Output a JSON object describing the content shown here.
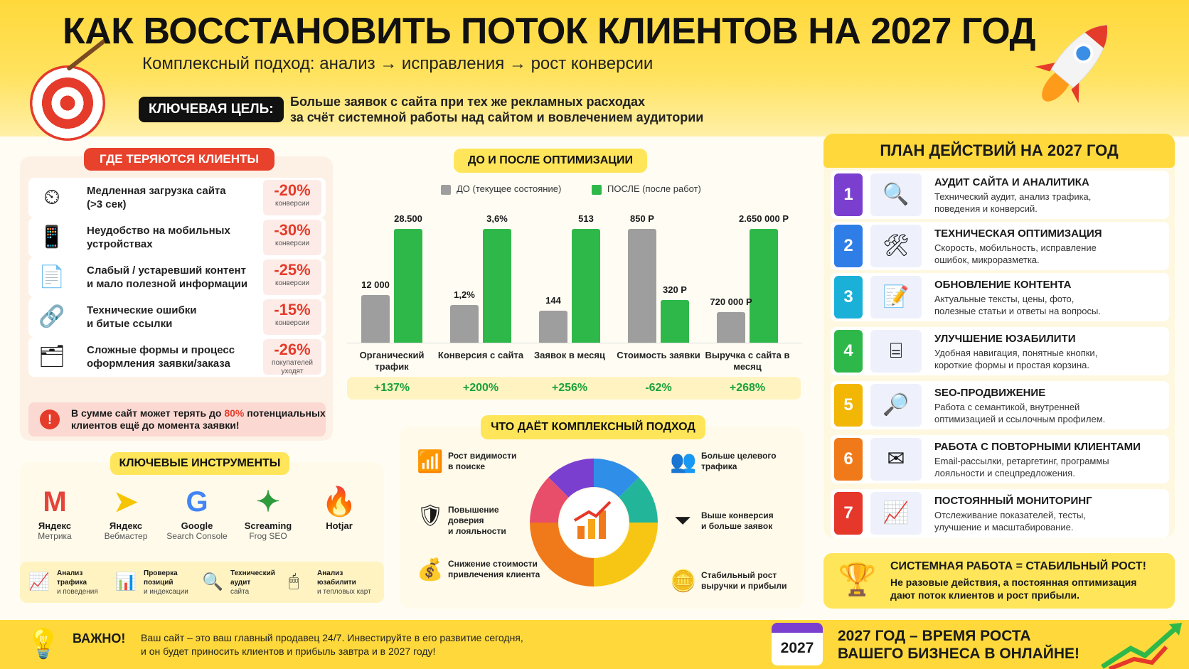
{
  "header": {
    "title": "КАК ВОССТАНОВИТЬ ПОТОК КЛИЕНТОВ НА 2027 ГОД",
    "subtitle": "Комплексный подход: анализ → исправления → рост конверсии",
    "goal_label": "КЛЮЧЕВАЯ ЦЕЛЬ:",
    "goal_line1": "Больше заявок с сайта при тех же рекламных расходах",
    "goal_line2": "за счёт системной работы над сайтом и вовлечением аудитории"
  },
  "losses": {
    "title": "ГДЕ ТЕРЯЮТСЯ КЛИЕНТЫ",
    "items": [
      {
        "icon": "speedometer-icon",
        "text1": "Медленная загрузка сайта",
        "text2": "(>3 сек)",
        "value": "-20%",
        "sub1": "конверсии",
        "sub2": ""
      },
      {
        "icon": "smartphone-icon",
        "text1": "Неудобство на мобильных",
        "text2": "устройствах",
        "value": "-30%",
        "sub1": "конверсии",
        "sub2": ""
      },
      {
        "icon": "document-icon",
        "text1": "Слабый / устаревший контент",
        "text2": "и мало полезной информации",
        "value": "-25%",
        "sub1": "конверсии",
        "sub2": ""
      },
      {
        "icon": "broken-link-icon",
        "text1": "Технические ошибки",
        "text2": "и битые ссылки",
        "value": "-15%",
        "sub1": "конверсии",
        "sub2": ""
      },
      {
        "icon": "form-icon",
        "text1": "Сложные формы и процесс",
        "text2": "оформления заявки/заказа",
        "value": "-26%",
        "sub1": "покупателей",
        "sub2": "уходят"
      }
    ],
    "alert_pre": "В сумме сайт может терять до ",
    "alert_pct": "80%",
    "alert_post": " потенциальных",
    "alert_line2": "клиентов ещё до момента заявки!"
  },
  "tools": {
    "title": "КЛЮЧЕВЫЕ ИНСТРУМЕНТЫ",
    "items": [
      {
        "name": "Яндекс",
        "sub": "Метрика",
        "color": "#e5443a"
      },
      {
        "name": "Яндекс",
        "sub": "Вебмастер",
        "color": "#f6c400"
      },
      {
        "name": "Google",
        "sub": "Search Console",
        "color": "#4285f4"
      },
      {
        "name": "Screaming",
        "sub": "Frog SEO",
        "color": "#2e9b3c"
      },
      {
        "name": "Hotjar",
        "sub": "",
        "color": "#ff3c00"
      }
    ],
    "mini": [
      {
        "t1": "Анализ",
        "t2": "трафика",
        "t3": "и поведения"
      },
      {
        "t1": "Проверка",
        "t2": "позиций",
        "t3": "и индексации"
      },
      {
        "t1": "Технический",
        "t2": "аудит",
        "t3": "сайта"
      },
      {
        "t1": "Анализ",
        "t2": "юзабилити",
        "t3": "и тепловых карт"
      }
    ]
  },
  "chart": {
    "title": "ДО И ПОСЛЕ ОПТИМИЗАЦИИ",
    "legend_before": "ДО (текущее состояние)",
    "legend_after": "ПОСЛЕ (после работ)"
  },
  "chart_data": {
    "type": "bar",
    "categories": [
      "Органический трафик",
      "Конверсия с сайта",
      "Заявок в месяц",
      "Стоимость заявки",
      "Выручка с сайта в месяц"
    ],
    "series": [
      {
        "name": "ДО (текущее состояние)",
        "values": [
          12000,
          1.2,
          144,
          850,
          720000
        ],
        "labels": [
          "12 000",
          "1,2%",
          "144",
          "850 Р",
          "720 000 Р"
        ]
      },
      {
        "name": "ПОСЛЕ (после работ)",
        "values": [
          28500,
          3.6,
          513,
          320,
          2650000
        ],
        "labels": [
          "28.500",
          "3,6%",
          "513",
          "320 Р",
          "2.650 000 Р"
        ]
      }
    ],
    "deltas": [
      "+137%",
      "+200%",
      "+256%",
      "-62%",
      "+268%"
    ],
    "colors": {
      "before": "#9e9e9e",
      "after": "#2fb84a"
    }
  },
  "benefits": {
    "title": "ЧТО ДАЁТ КОМПЛЕКСНЫЙ ПОДХОД",
    "left": [
      {
        "icon": "growth-chart-icon",
        "l1": "Рост видимости",
        "l2": "в поиске",
        "l3": ""
      },
      {
        "icon": "shield-check-icon",
        "l1": "Повышение",
        "l2": "доверия",
        "l3": "и лояльности"
      },
      {
        "icon": "coin-down-icon",
        "l1": "Снижение стоимости",
        "l2": "привлечения клиента",
        "l3": ""
      }
    ],
    "right": [
      {
        "icon": "people-icon",
        "l1": "Больше целевого",
        "l2": "трафика"
      },
      {
        "icon": "funnel-icon",
        "l1": "Выше конверсия",
        "l2": "и больше заявок"
      },
      {
        "icon": "coins-stack-icon",
        "l1": "Стабильный рост",
        "l2": "выручки и прибыли"
      }
    ]
  },
  "plan": {
    "title": "ПЛАН ДЕЙСТВИЙ НА 2027 ГОД",
    "steps": [
      {
        "num": "1",
        "color": "#7b3fd0",
        "icon": "magnifier-icon",
        "glyph": "🔍",
        "title": "АУДИТ САЙТА И АНАЛИТИКА",
        "d1": "Технический аудит, анализ трафика,",
        "d2": "поведения и конверсий."
      },
      {
        "num": "2",
        "color": "#2f7ee8",
        "icon": "tools-icon",
        "glyph": "🛠",
        "title": "ТЕХНИЧЕСКАЯ ОПТИМИЗАЦИЯ",
        "d1": "Скорость, мобильность, исправление",
        "d2": "ошибок, микроразметка."
      },
      {
        "num": "3",
        "color": "#1ab0d8",
        "icon": "edit-doc-icon",
        "glyph": "📝",
        "title": "ОБНОВЛЕНИЕ КОНТЕНТА",
        "d1": "Актуальные тексты, цены, фото,",
        "d2": "полезные статьи и ответы на вопросы."
      },
      {
        "num": "4",
        "color": "#2fb84a",
        "icon": "sitemap-icon",
        "glyph": "⌸",
        "title": "УЛУЧШЕНИЕ ЮЗАБИЛИТИ",
        "d1": "Удобная навигация, понятные кнопки,",
        "d2": "короткие формы и простая корзина."
      },
      {
        "num": "5",
        "color": "#f2b705",
        "icon": "seo-magnifier-icon",
        "glyph": "🔎",
        "title": "SEO-ПРОДВИЖЕНИЕ",
        "d1": "Работа с семантикой, внутренней",
        "d2": "оптимизацией и ссылочным профилем."
      },
      {
        "num": "6",
        "color": "#f07a1a",
        "icon": "envelope-icon",
        "glyph": "✉",
        "title": "РАБОТА С ПОВТОРНЫМИ КЛИЕНТАМИ",
        "d1": "Email-рассылки, ретаргетинг, программы",
        "d2": "лояльности и спецпредложения."
      },
      {
        "num": "7",
        "color": "#e5382a",
        "icon": "monitor-chart-icon",
        "glyph": "📈",
        "title": "ПОСТОЯННЫЙ МОНИТОРИНГ",
        "d1": "Отслеживание показателей, тесты,",
        "d2": "улучшение и масштабирование."
      }
    ],
    "summary_title": "СИСТЕМНАЯ РАБОТА = СТАБИЛЬНЫЙ РОСТ!",
    "summary_l1": "Не разовые действия, а постоянная оптимизация",
    "summary_l2": "дают поток клиентов и рост прибыли."
  },
  "footer": {
    "important": "ВАЖНО!",
    "line1": "Ваш сайт – это ваш главный продавец 24/7. Инвестируйте в его развитие сегодня,",
    "line2": "и он будет приносить клиентов и прибыль завтра и в 2027 году!",
    "calendar_year": "2027",
    "cta1": "2027 ГОД – ВРЕМЯ РОСТА",
    "cta2": "ВАШЕГО БИЗНЕСА В ОНЛАЙНЕ!"
  }
}
